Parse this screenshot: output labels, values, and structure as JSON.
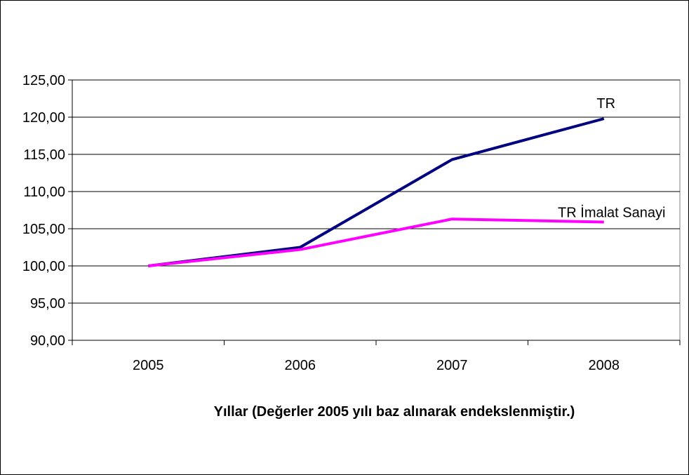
{
  "chart_data": {
    "type": "line",
    "title": "",
    "xlabel": "Yıllar (Değerler 2005 yılı baz alınarak endekslenmiştir.)",
    "ylabel": "",
    "categories": [
      "2005",
      "2006",
      "2007",
      "2008"
    ],
    "ylim": [
      90,
      125
    ],
    "yticks": [
      "90,00",
      "95,00",
      "100,00",
      "105,00",
      "110,00",
      "115,00",
      "120,00",
      "125,00"
    ],
    "grid": true,
    "legend": "none",
    "series": [
      {
        "name": "TR",
        "values": [
          100.0,
          102.5,
          114.3,
          119.8
        ],
        "color": "#000080"
      },
      {
        "name": "TR İmalat Sanayi",
        "values": [
          100.0,
          102.2,
          106.3,
          105.9
        ],
        "color": "#FF00FF"
      }
    ]
  }
}
